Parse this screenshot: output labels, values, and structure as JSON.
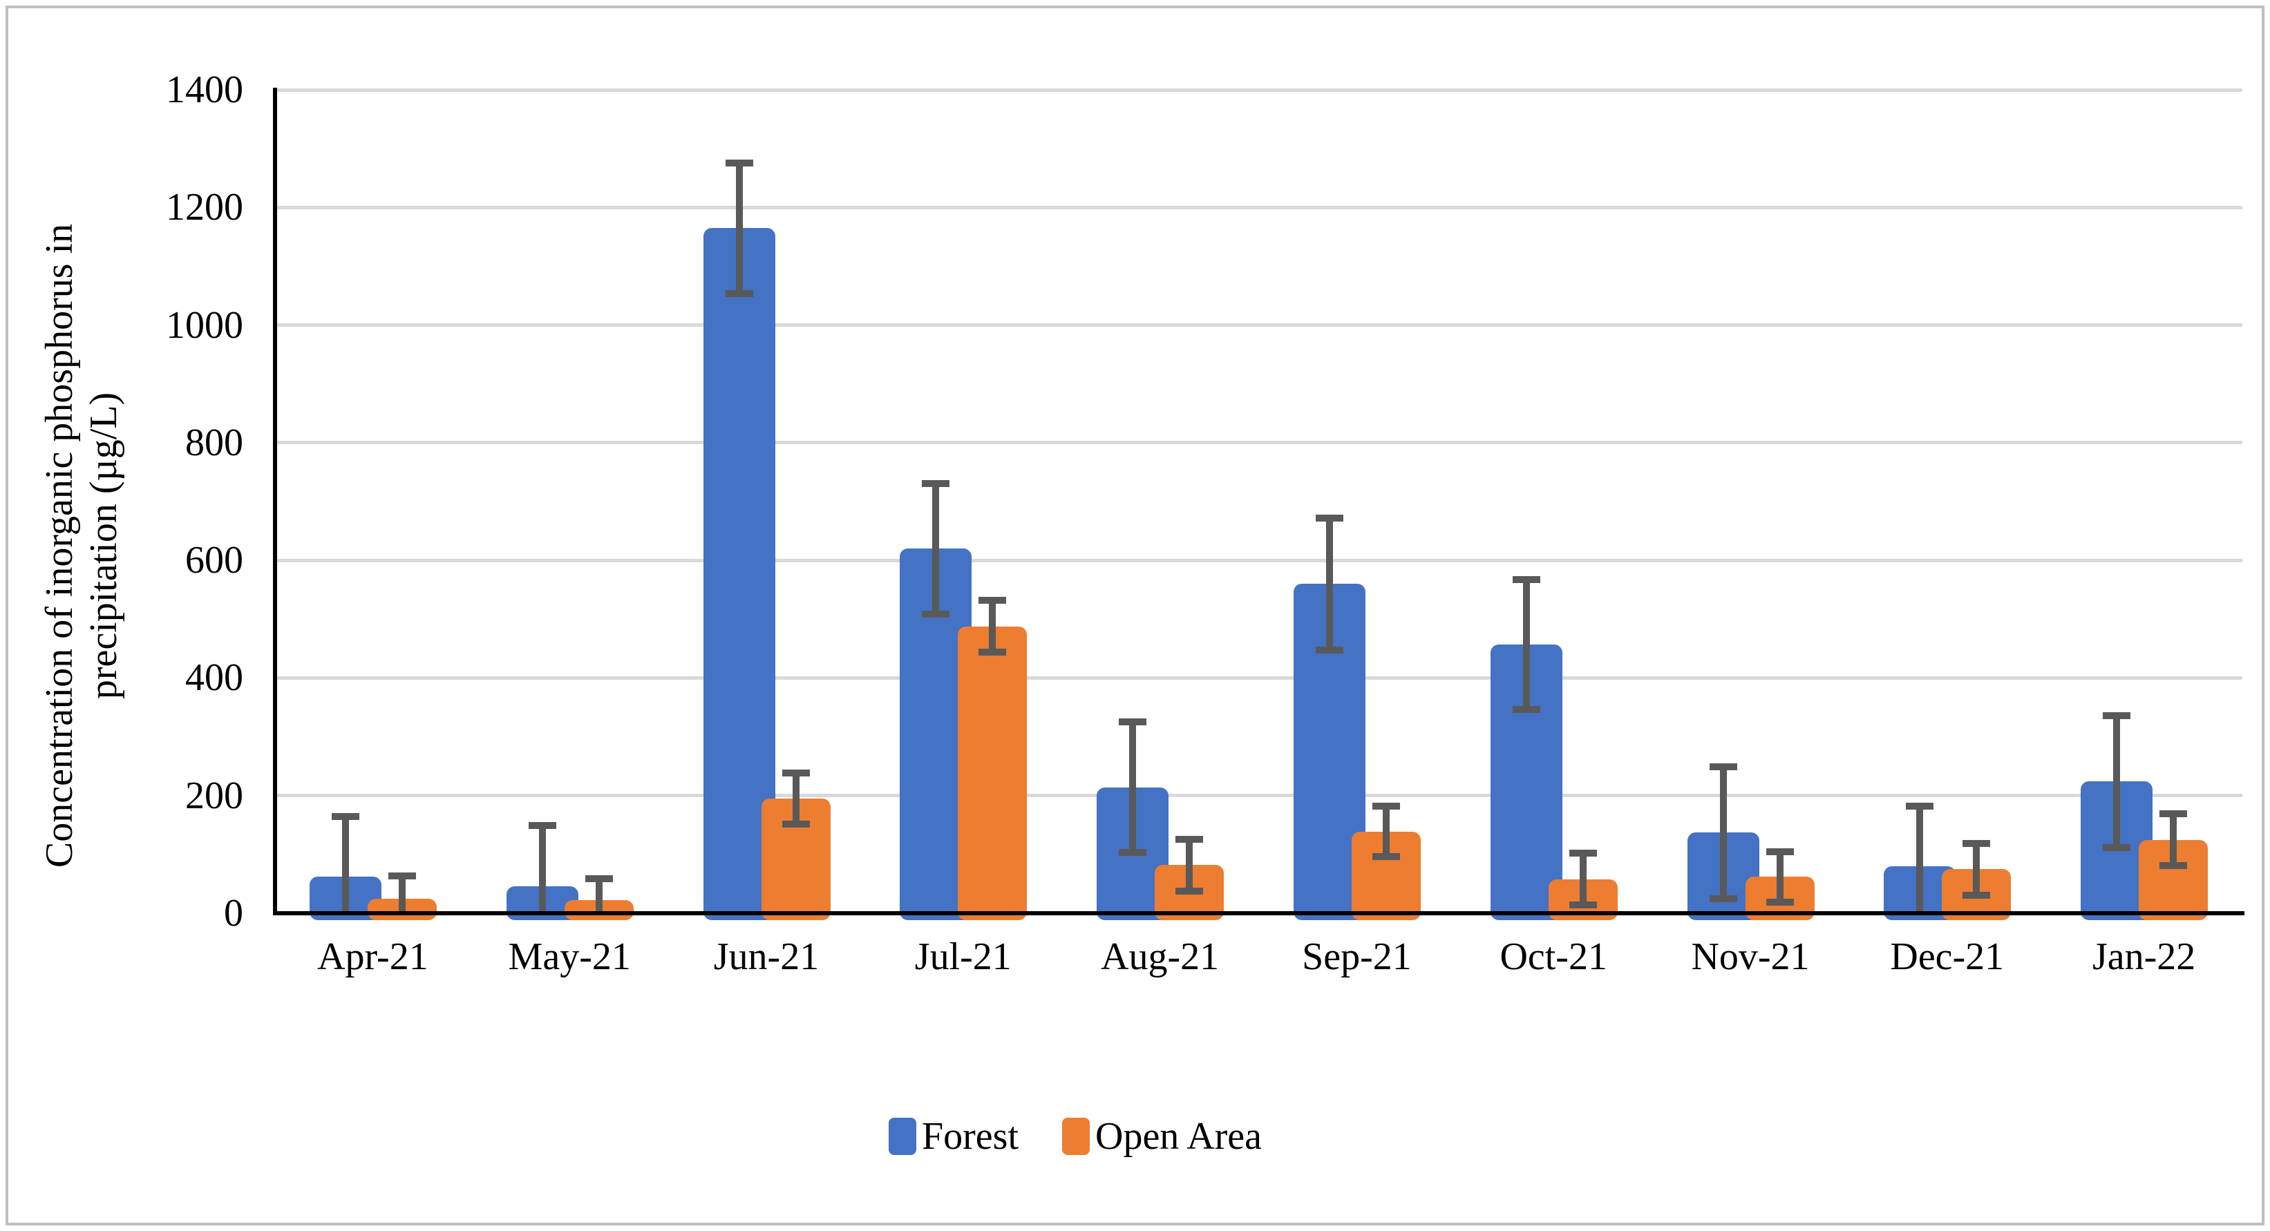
{
  "figure": {
    "y_axis": {
      "title_line1": "Concentration of inorganic phosphorus in",
      "title_line2": "precipitation (µg/L)",
      "tick_labels": [
        "0",
        "200",
        "400",
        "600",
        "800",
        "1000",
        "1200",
        "1400"
      ],
      "min": 0,
      "max": 1400,
      "step": 200
    },
    "x_axis": {
      "categories": [
        "Apr-21",
        "May-21",
        "Jun-21",
        "Jul-21",
        "Aug-21",
        "Sep-21",
        "Oct-21",
        "Nov-21",
        "Dec-21",
        "Jan-22"
      ]
    },
    "legend": {
      "items": [
        {
          "label": "Forest",
          "color": "#4472C4"
        },
        {
          "label": "Open Area",
          "color": "#ED7D31"
        }
      ]
    },
    "colors": {
      "forest": "#4472C4",
      "open_area": "#ED7D31",
      "error_bar": "#595959",
      "gridline": "#d9d9d9",
      "axis": "#000000",
      "border": "#bfbfbf"
    }
  },
  "chart_data": {
    "type": "bar",
    "title": "",
    "xlabel": "",
    "ylabel": "Concentration of inorganic phosphorus in precipitation (µg/L)",
    "ylim": [
      0,
      1400
    ],
    "ytick_step": 200,
    "grid": true,
    "legend_position": "bottom",
    "error_bars": true,
    "categories": [
      "Apr-21",
      "May-21",
      "Jun-21",
      "Jul-21",
      "Aug-21",
      "Sep-21",
      "Oct-21",
      "Nov-21",
      "Dec-21",
      "Jan-22"
    ],
    "series": [
      {
        "name": "Forest",
        "color": "#4472C4",
        "values": [
          62,
          46,
          1165,
          620,
          214,
          560,
          457,
          137,
          80,
          224
        ],
        "errors": [
          103,
          103,
          111,
          111,
          111,
          112,
          110,
          112,
          102,
          112
        ]
      },
      {
        "name": "Open Area",
        "color": "#ED7D31",
        "values": [
          25,
          22,
          195,
          488,
          82,
          139,
          58,
          62,
          75,
          125
        ],
        "errors": [
          38,
          37,
          44,
          44,
          44,
          43,
          44,
          43,
          44,
          44
        ]
      }
    ]
  }
}
